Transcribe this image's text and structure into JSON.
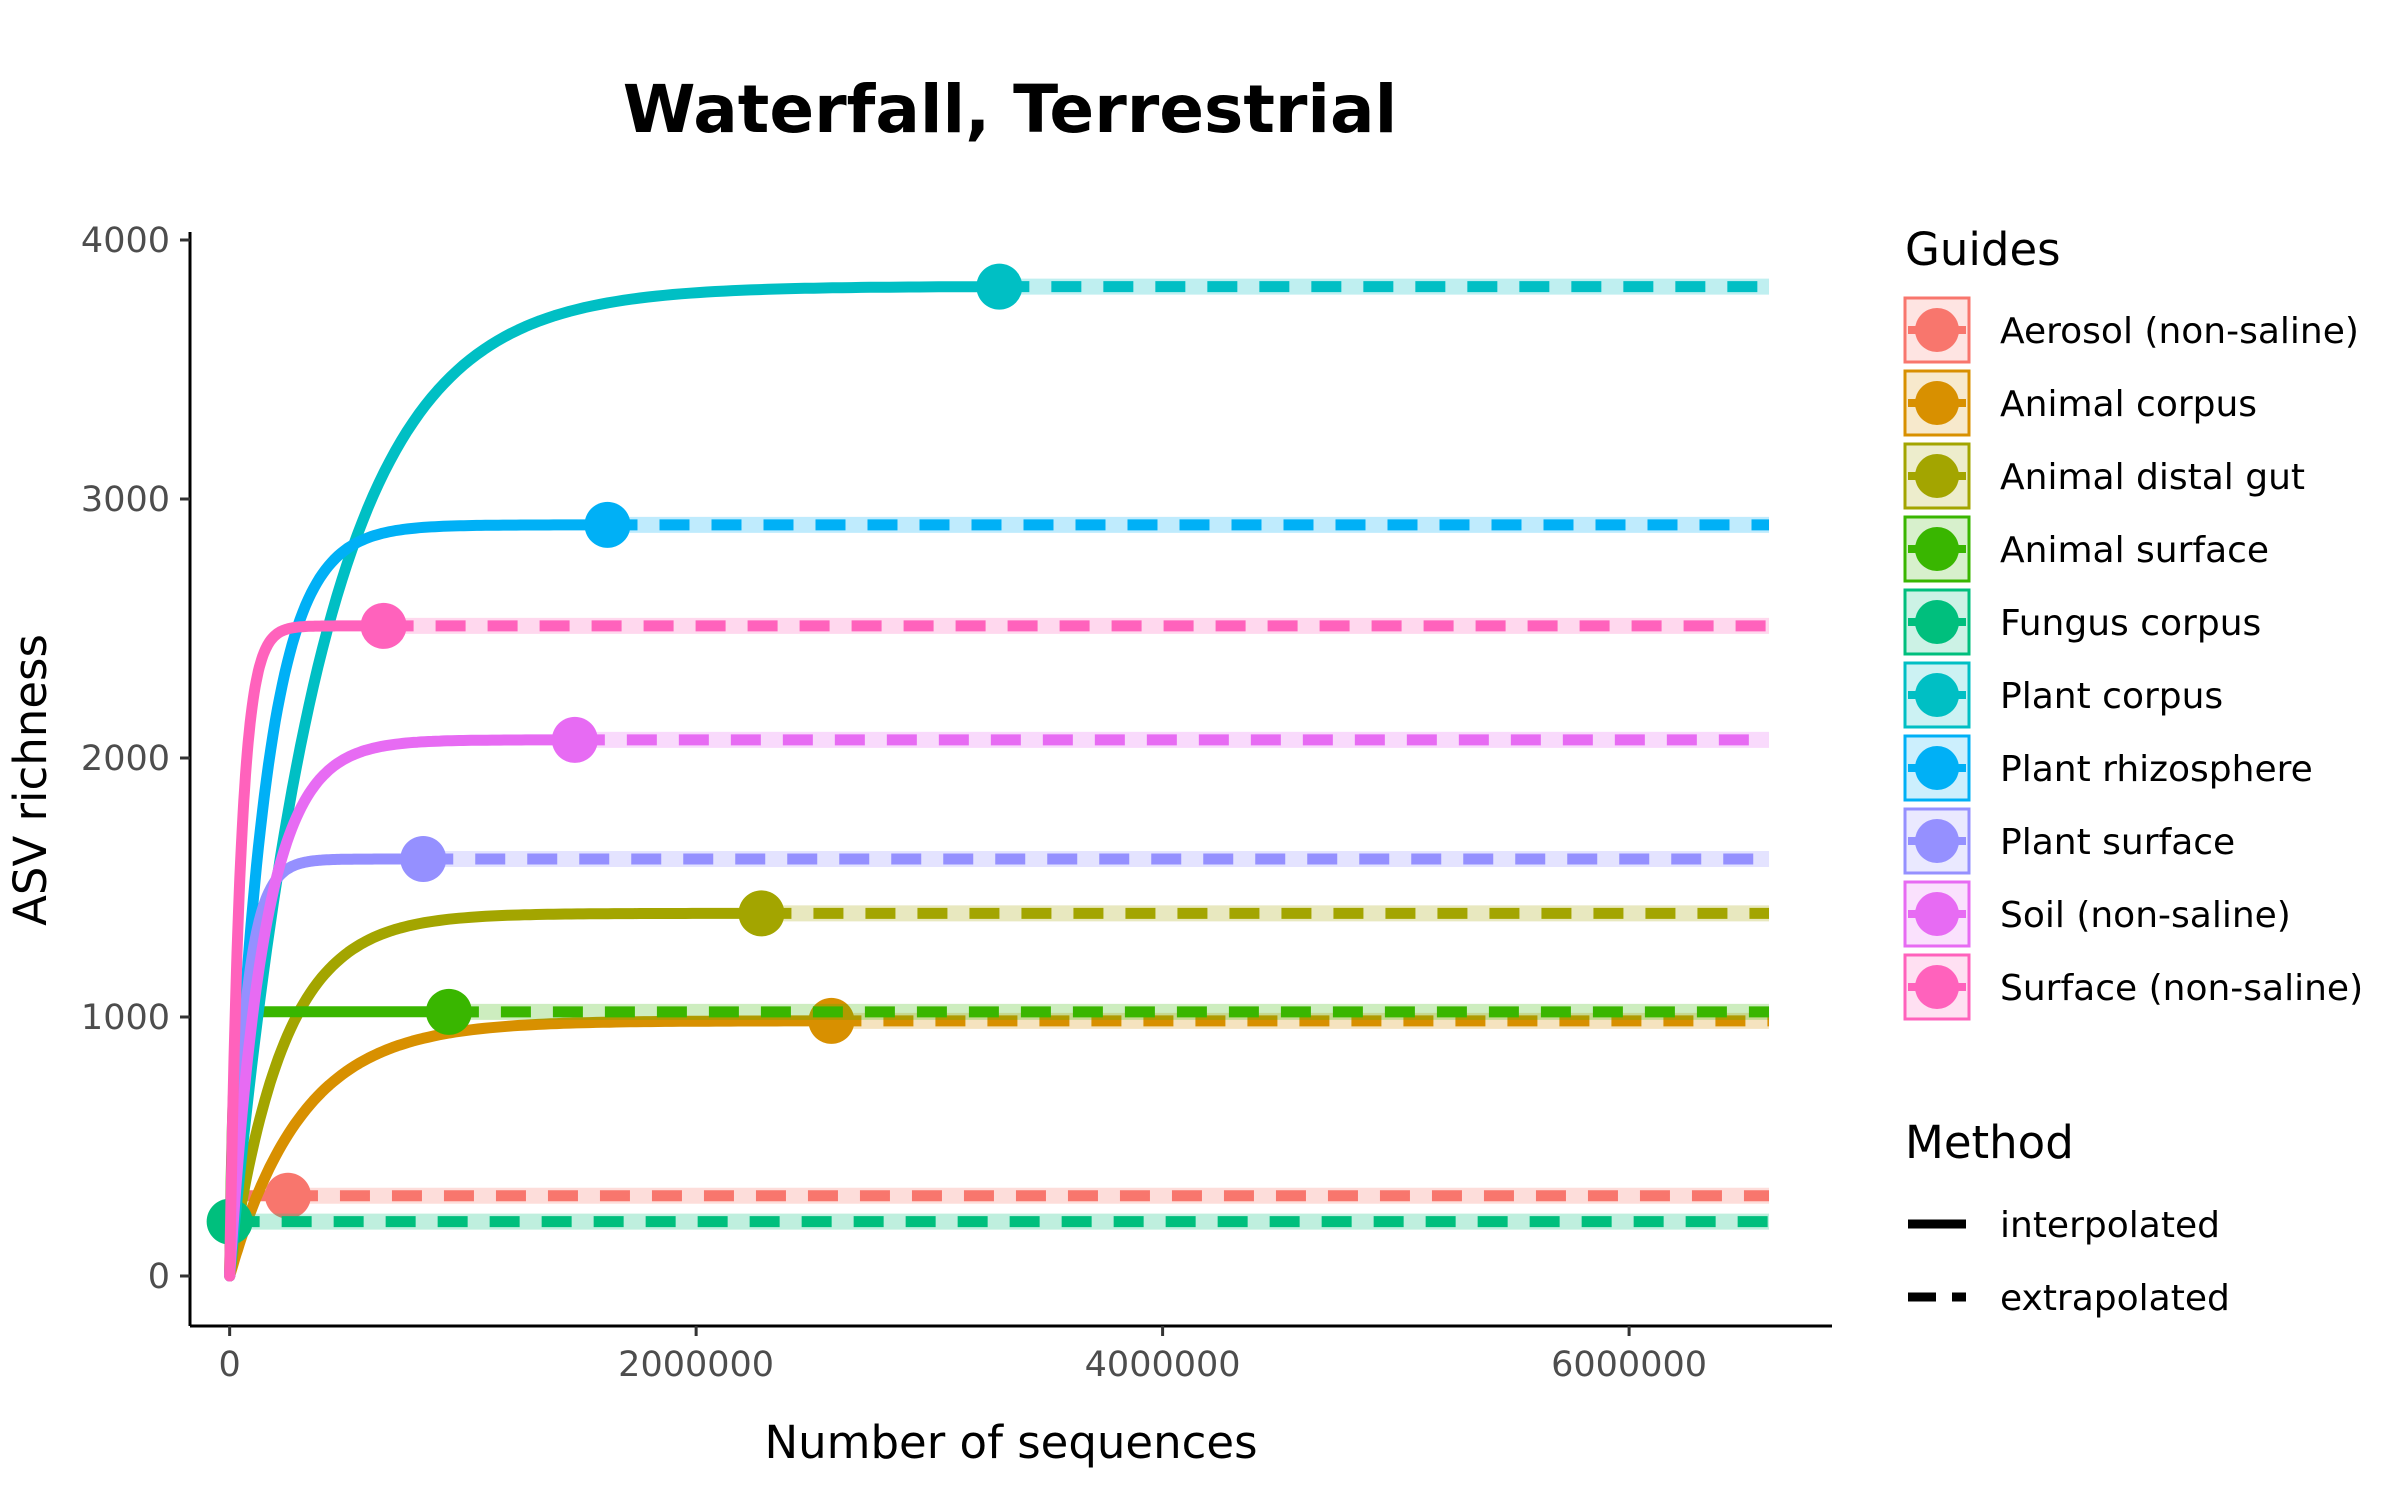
{
  "chart_data": {
    "type": "line",
    "title": "Waterfall, Terrestrial",
    "xlabel": "Number of sequences",
    "ylabel": "ASV richness",
    "xlim": [
      -170000,
      6870000
    ],
    "ylim": [
      -190000,
      4020
    ],
    "x_extrap_end": 6600000,
    "x_ticks": [
      0,
      2000000,
      4000000,
      6000000
    ],
    "x_tick_labels": [
      "0",
      "2000000",
      "4000000",
      "6000000"
    ],
    "y_ticks": [
      0,
      1000,
      2000,
      3000,
      4000
    ],
    "y_tick_labels": [
      "0",
      "1000",
      "2000",
      "3000",
      "4000"
    ],
    "grid": false,
    "legend_placement": "right",
    "legend": {
      "guides_title": "Guides",
      "method_title": "Method",
      "method_entries": [
        "interpolated",
        "extrapolated"
      ]
    },
    "series": [
      {
        "name": "Aerosol (non-saline)",
        "color": "#F8766D",
        "observed_x": 250000,
        "observed_y": 310,
        "curve_k": 0.02
      },
      {
        "name": "Animal corpus",
        "color": "#D89000",
        "observed_x": 2580000,
        "observed_y": 985,
        "curve_k": 0.12
      },
      {
        "name": "Animal distal gut",
        "color": "#A3A500",
        "observed_x": 2280000,
        "observed_y": 1400,
        "curve_k": 0.1
      },
      {
        "name": "Animal surface",
        "color": "#39B600",
        "observed_x": 940000,
        "observed_y": 1020,
        "curve_k": 0.015
      },
      {
        "name": "Fungus corpus",
        "color": "#00BF7D",
        "observed_x": 0,
        "observed_y": 210,
        "curve_k": 0.02
      },
      {
        "name": "Plant corpus",
        "color": "#00BFC4",
        "observed_x": 3300000,
        "observed_y": 3820,
        "curve_k": 0.12
      },
      {
        "name": "Plant rhizosphere",
        "color": "#00B0F6",
        "observed_x": 1620000,
        "observed_y": 2900,
        "curve_k": 0.09
      },
      {
        "name": "Plant surface",
        "color": "#9590FF",
        "observed_x": 830000,
        "observed_y": 1610,
        "curve_k": 0.08
      },
      {
        "name": "Soil (non-saline)",
        "color": "#E76BF3",
        "observed_x": 1480000,
        "observed_y": 2070,
        "curve_k": 0.1
      },
      {
        "name": "Surface (non-saline)",
        "color": "#FF62BC",
        "observed_x": 660000,
        "observed_y": 2510,
        "curve_k": 0.07
      }
    ]
  }
}
